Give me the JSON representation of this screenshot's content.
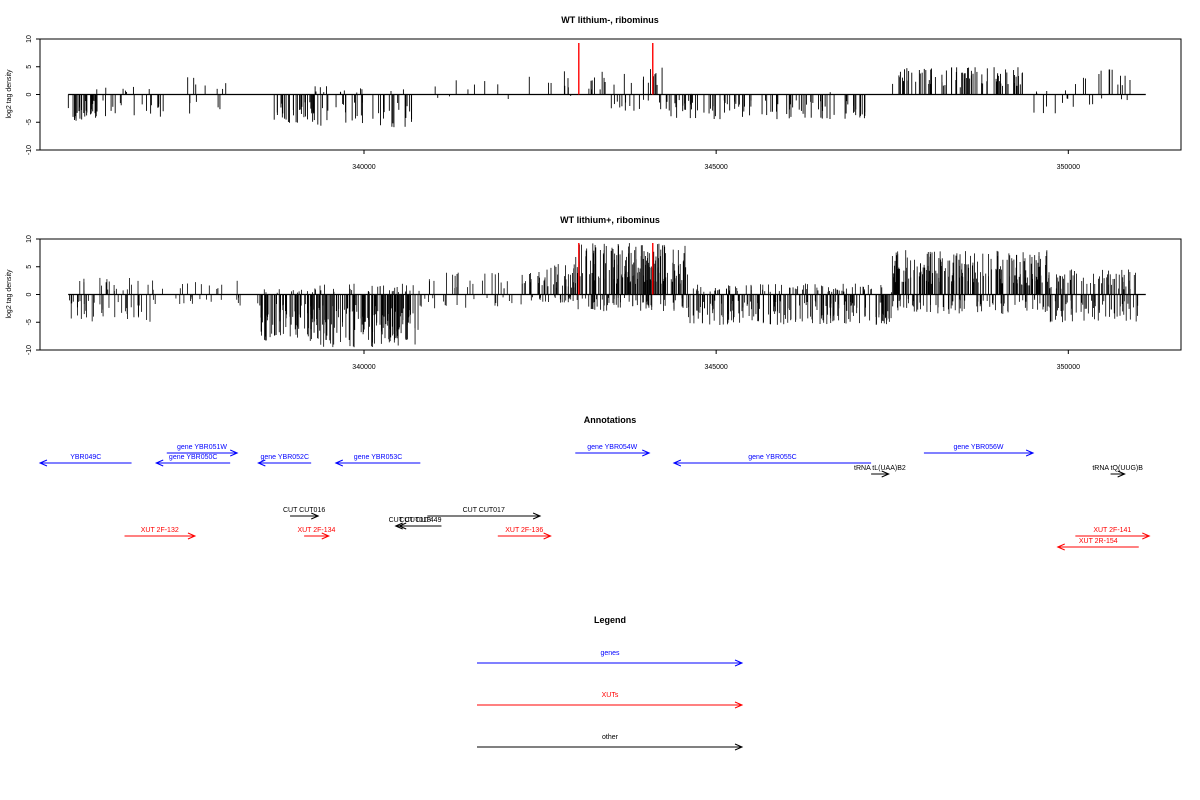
{
  "chart_data": [
    {
      "type": "bar",
      "title": "WT lithium-, ribominus",
      "ylabel": "log2 tag density",
      "xlabel": "",
      "xlim": [
        335400,
        351600
      ],
      "ylim": [
        -10,
        10
      ],
      "yticks": [
        10,
        5,
        0,
        -5,
        -10
      ],
      "xticks": [
        340000,
        345000,
        350000
      ],
      "density": "sparse",
      "markers": [
        343050,
        344100
      ],
      "marker_color": "#ff0000",
      "segments": [
        {
          "from": 335800,
          "to": 336200,
          "min": -5.0,
          "max": 0.5,
          "n": 30
        },
        {
          "from": 336200,
          "to": 337300,
          "min": -4.0,
          "max": 1.5,
          "n": 26
        },
        {
          "from": 337300,
          "to": 338200,
          "min": -3.5,
          "max": 3.3,
          "n": 12
        },
        {
          "from": 338700,
          "to": 339300,
          "min": -5.3,
          "max": 0.0,
          "n": 34
        },
        {
          "from": 339300,
          "to": 340700,
          "min": -6.0,
          "max": 1.5,
          "n": 48
        },
        {
          "from": 341000,
          "to": 342500,
          "min": -1.0,
          "max": 3.3,
          "n": 10
        },
        {
          "from": 342600,
          "to": 343400,
          "min": -1.0,
          "max": 4.5,
          "n": 14
        },
        {
          "from": 343400,
          "to": 344300,
          "min": -3.0,
          "max": 5.0,
          "n": 30
        },
        {
          "from": 344300,
          "to": 347300,
          "min": -4.5,
          "max": 0.5,
          "n": 95
        },
        {
          "from": 347500,
          "to": 349400,
          "min": 0.0,
          "max": 5.0,
          "n": 80
        },
        {
          "from": 349500,
          "to": 350100,
          "min": -3.5,
          "max": 1.0,
          "n": 12
        },
        {
          "from": 350100,
          "to": 350900,
          "min": -2.5,
          "max": 4.8,
          "n": 18
        }
      ]
    },
    {
      "type": "bar",
      "title": "WT lithium+, ribominus",
      "ylabel": "log2 tag density",
      "xlabel": "",
      "xlim": [
        335400,
        351600
      ],
      "ylim": [
        -10,
        10
      ],
      "yticks": [
        10,
        5,
        0,
        -5,
        -10
      ],
      "xticks": [
        340000,
        345000,
        350000
      ],
      "density": "dense",
      "markers": [
        343050,
        344100
      ],
      "marker_color": "#ff0000",
      "segments": [
        {
          "from": 335800,
          "to": 337000,
          "min": -5.0,
          "max": 3.0,
          "n": 60
        },
        {
          "from": 337000,
          "to": 338500,
          "min": -2.0,
          "max": 2.5,
          "n": 30
        },
        {
          "from": 338500,
          "to": 339300,
          "min": -8.5,
          "max": 1.0,
          "n": 90
        },
        {
          "from": 339300,
          "to": 340800,
          "min": -9.5,
          "max": 2.0,
          "n": 170
        },
        {
          "from": 340800,
          "to": 342300,
          "min": -2.5,
          "max": 4.0,
          "n": 45
        },
        {
          "from": 342300,
          "to": 343000,
          "min": -1.5,
          "max": 5.5,
          "n": 60
        },
        {
          "from": 343000,
          "to": 344600,
          "min": -3.0,
          "max": 9.3,
          "n": 220
        },
        {
          "from": 344600,
          "to": 347500,
          "min": -5.5,
          "max": 2.0,
          "n": 260
        },
        {
          "from": 347500,
          "to": 349700,
          "min": -3.5,
          "max": 8.0,
          "n": 260
        },
        {
          "from": 349700,
          "to": 351000,
          "min": -5.0,
          "max": 4.5,
          "n": 120
        }
      ]
    }
  ],
  "annotations": {
    "title": "Annotations",
    "genes": [
      {
        "label": "YBR049C",
        "from": 335400,
        "to": 336700,
        "strand": "-",
        "row": 1
      },
      {
        "label": "gene YBR051W",
        "from": 337200,
        "to": 338200,
        "strand": "+",
        "row": 0
      },
      {
        "label": "gene YBR050C",
        "from": 337050,
        "to": 338100,
        "strand": "-",
        "row": 1
      },
      {
        "label": "gene YBR052C",
        "from": 338500,
        "to": 339250,
        "strand": "-",
        "row": 1
      },
      {
        "label": "gene YBR053C",
        "from": 339600,
        "to": 340800,
        "strand": "-",
        "row": 1
      },
      {
        "label": "gene YBR054W",
        "from": 343000,
        "to": 344050,
        "strand": "+",
        "row": 0
      },
      {
        "label": "gene YBR055C",
        "from": 344400,
        "to": 347200,
        "strand": "-",
        "row": 1
      },
      {
        "label": "gene YBR056W",
        "from": 347950,
        "to": 349500,
        "strand": "+",
        "row": 0
      }
    ],
    "xuts": [
      {
        "label": "XUT 2F-132",
        "from": 336600,
        "to": 337600,
        "strand": "+",
        "row": 3
      },
      {
        "label": "XUT 2F-134",
        "from": 339150,
        "to": 339500,
        "strand": "+",
        "row": 3
      },
      {
        "label": "XUT 2F-136",
        "from": 341900,
        "to": 342650,
        "strand": "+",
        "row": 3
      },
      {
        "label": "XUT 2F-141",
        "from": 350100,
        "to": 351150,
        "strand": "+",
        "row": 3
      },
      {
        "label": "XUT 2R-154",
        "from": 349850,
        "to": 351000,
        "strand": "-",
        "row": 4
      }
    ],
    "others": [
      {
        "label": "CUT CUT016",
        "from": 338950,
        "to": 339350,
        "strand": "+",
        "row": 2
      },
      {
        "label": "CUT CUT017",
        "from": 340900,
        "to": 342500,
        "strand": "+",
        "row": 2
      },
      {
        "label": "CUT CUT449",
        "from": 340500,
        "to": 341100,
        "strand": "-",
        "row": 5
      },
      {
        "label": "CUT CUT018",
        "from": 340450,
        "to": 340850,
        "strand": "-",
        "row": 5
      },
      {
        "label": "tRNA tL(UAA)B2",
        "from": 347200,
        "to": 347450,
        "strand": "+",
        "row": 6
      },
      {
        "label": "tRNA tQ(UUG)B",
        "from": 350600,
        "to": 350800,
        "strand": "+",
        "row": 6
      }
    ]
  },
  "legend": {
    "title": "Legend",
    "items": [
      {
        "label": "genes",
        "color": "#0000ff"
      },
      {
        "label": "XUTs",
        "color": "#ff0000"
      },
      {
        "label": "other",
        "color": "#000000"
      }
    ]
  },
  "colors": {
    "gene": "#0000ff",
    "xut": "#ff0000",
    "other": "#000000",
    "marker": "#ff0000",
    "axis": "#000000"
  }
}
